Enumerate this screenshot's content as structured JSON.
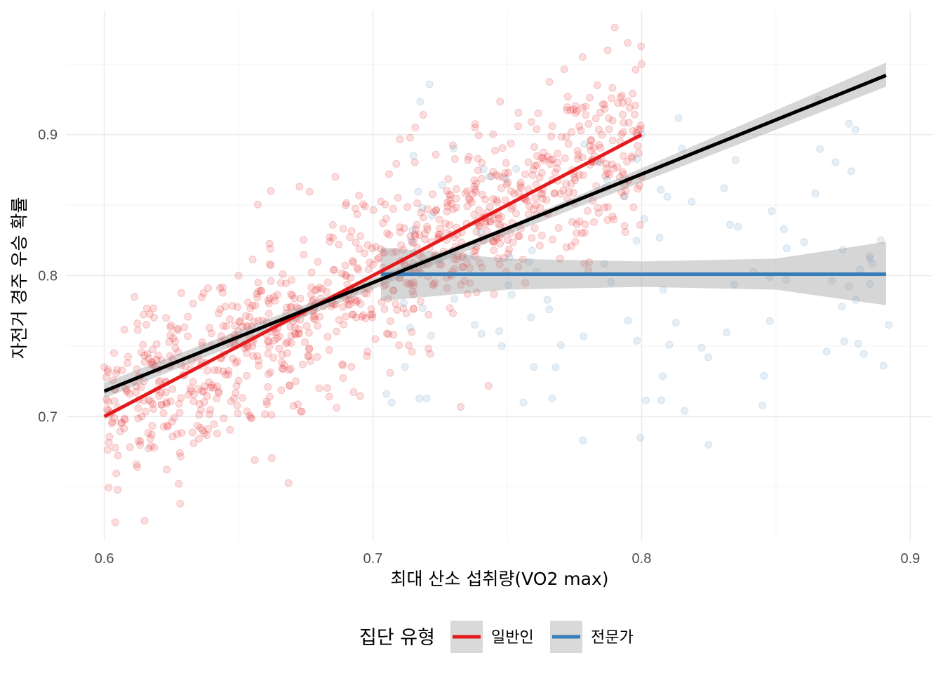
{
  "chart_data": {
    "type": "scatter",
    "xlabel": "최대 산소 섭취량(VO2 max)",
    "ylabel": "자전거 경주 우승 확률",
    "xlim": [
      0.586,
      0.908
    ],
    "ylim": [
      0.612,
      0.988
    ],
    "x_ticks": [
      "0.6",
      "0.7",
      "0.8",
      "0.9"
    ],
    "y_ticks": [
      "0.7",
      "0.8",
      "0.9"
    ],
    "x_tick_values": [
      0.6,
      0.7,
      0.8,
      0.9
    ],
    "y_tick_values": [
      0.7,
      0.8,
      0.9
    ],
    "grid": true,
    "legend": {
      "title": "집단 유형",
      "position": "bottom",
      "entries": [
        {
          "label": "일반인",
          "color": "#E41A1C"
        },
        {
          "label": "전문가",
          "color": "#377EB8"
        }
      ]
    },
    "series": [
      {
        "name": "일반인",
        "color": "#E41A1C",
        "x_range": [
          0.6,
          0.8
        ],
        "n_points": 1000,
        "point_alpha": 0.15,
        "fit": {
          "x": [
            0.6,
            0.8
          ],
          "y": [
            0.7,
            0.9
          ]
        },
        "sample_points": [
          [
            0.6,
            0.735
          ],
          [
            0.605,
            0.648
          ],
          [
            0.615,
            0.626
          ],
          [
            0.623,
            0.77
          ],
          [
            0.65,
            0.8
          ],
          [
            0.662,
            0.86
          ],
          [
            0.656,
            0.669
          ],
          [
            0.68,
            0.72
          ],
          [
            0.686,
            0.87
          ],
          [
            0.698,
            0.746
          ],
          [
            0.706,
            0.872
          ],
          [
            0.738,
            0.905
          ],
          [
            0.778,
            0.955
          ],
          [
            0.79,
            0.976
          ],
          [
            0.8,
            0.95
          ],
          [
            0.8,
            0.87
          ]
        ]
      },
      {
        "name": "전문가",
        "color": "#377EB8",
        "x_range": [
          0.703,
          0.893
        ],
        "n_points": 120,
        "point_alpha": 0.12,
        "fit": {
          "x": [
            0.703,
            0.891
          ],
          "y": [
            0.801,
            0.801
          ]
        },
        "ci": {
          "x": [
            0.703,
            0.75,
            0.8,
            0.85,
            0.891
          ],
          "lower": [
            0.782,
            0.79,
            0.792,
            0.79,
            0.779
          ],
          "upper": [
            0.82,
            0.812,
            0.81,
            0.812,
            0.824
          ]
        },
        "sample_points": [
          [
            0.705,
            0.716
          ],
          [
            0.707,
            0.71
          ],
          [
            0.715,
            0.885
          ],
          [
            0.73,
            0.89
          ],
          [
            0.748,
            0.75
          ],
          [
            0.756,
            0.71
          ],
          [
            0.768,
            0.735
          ],
          [
            0.795,
            0.768
          ],
          [
            0.8,
            0.9
          ],
          [
            0.808,
            0.79
          ],
          [
            0.815,
            0.89
          ],
          [
            0.816,
            0.704
          ],
          [
            0.835,
            0.882
          ],
          [
            0.845,
            0.708
          ],
          [
            0.853,
            0.833
          ],
          [
            0.878,
            0.874
          ],
          [
            0.885,
            0.794
          ],
          [
            0.889,
            0.825
          ],
          [
            0.892,
            0.765
          ],
          [
            0.89,
            0.736
          ]
        ]
      },
      {
        "name": "",
        "color": "#000000",
        "fit": {
          "x": [
            0.6,
            0.891
          ],
          "y": [
            0.718,
            0.942
          ]
        },
        "ci": {
          "x": [
            0.6,
            0.75,
            0.891
          ],
          "lower": [
            0.713,
            0.829,
            0.934
          ],
          "upper": [
            0.724,
            0.835,
            0.951
          ]
        }
      }
    ]
  }
}
